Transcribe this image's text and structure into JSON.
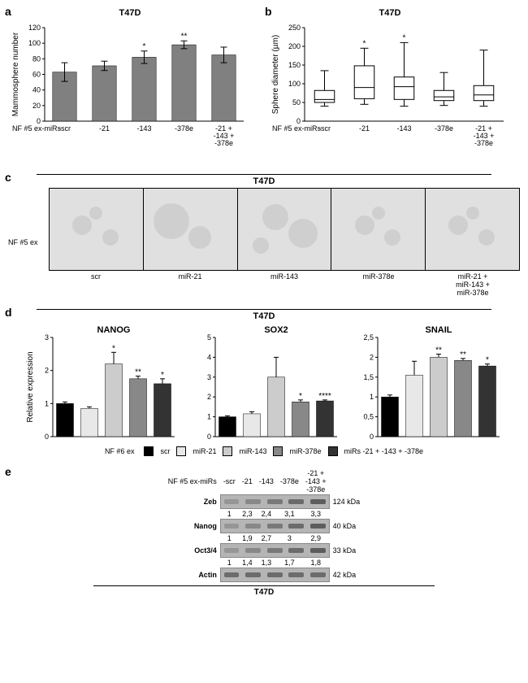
{
  "panel_a": {
    "letter": "a",
    "title": "T47D",
    "type": "bar",
    "ylabel": "Mammosphere number",
    "xlabel_prefix": "NF #5 ex-miRs",
    "categories": [
      "-scr",
      "-21",
      "-143",
      "-378e",
      "-21 +\n-143 +\n-378e"
    ],
    "values": [
      63,
      71,
      82,
      98,
      85
    ],
    "errors": [
      12,
      6,
      8,
      5,
      10
    ],
    "sig": [
      "",
      "",
      "*",
      "**",
      ""
    ],
    "ylim": [
      0,
      120
    ],
    "ytick_step": 20,
    "bar_color": "#808080",
    "background_color": "#ffffff"
  },
  "panel_b": {
    "letter": "b",
    "title": "T47D",
    "type": "boxplot",
    "ylabel": "Sphere diameter (µm)",
    "xlabel_prefix": "NF #5 ex-miRs",
    "categories": [
      "-scr",
      "-21",
      "-143",
      "-378e",
      "-21 +\n-143 +\n-378e"
    ],
    "boxes": [
      {
        "min": 40,
        "q1": 50,
        "med": 58,
        "q3": 82,
        "max": 135,
        "sig": ""
      },
      {
        "min": 45,
        "q1": 60,
        "med": 90,
        "q3": 148,
        "max": 195,
        "sig": "*"
      },
      {
        "min": 40,
        "q1": 58,
        "med": 92,
        "q3": 118,
        "max": 210,
        "sig": "*"
      },
      {
        "min": 42,
        "q1": 55,
        "med": 65,
        "q3": 82,
        "max": 130,
        "sig": ""
      },
      {
        "min": 40,
        "q1": 55,
        "med": 70,
        "q3": 95,
        "max": 190,
        "sig": ""
      }
    ],
    "ylim": [
      0,
      250
    ],
    "ytick_step": 50,
    "background_color": "#ffffff"
  },
  "panel_c": {
    "letter": "c",
    "title": "T47D",
    "row_label": "NF #5 ex",
    "labels": [
      "scr",
      "miR-21",
      "miR-143",
      "miR-378e",
      "miR-21 +\nmiR-143 +\nmiR-378e"
    ]
  },
  "panel_d": {
    "letter": "d",
    "title": "T47D",
    "ylabel": "Relative expression",
    "xlabel_prefix": "NF #6 ex",
    "legend": [
      {
        "label": "scr",
        "color": "#000000"
      },
      {
        "label": "miR-21",
        "color": "#e8e8e8"
      },
      {
        "label": "miR-143",
        "color": "#cccccc"
      },
      {
        "label": "miR-378e",
        "color": "#888888"
      },
      {
        "label": "miRs -21 + -143 + -378e",
        "color": "#333333"
      }
    ],
    "charts": [
      {
        "name": "NANOG",
        "ylim": [
          0,
          3
        ],
        "ytick_step": 1,
        "values": [
          1.0,
          0.85,
          2.2,
          1.75,
          1.6
        ],
        "errors": [
          0.05,
          0.05,
          0.35,
          0.08,
          0.15
        ],
        "sig": [
          "",
          "",
          "*",
          "**",
          "*"
        ]
      },
      {
        "name": "SOX2",
        "ylim": [
          0,
          5
        ],
        "ytick_step": 1,
        "values": [
          1.0,
          1.15,
          3.0,
          1.75,
          1.8
        ],
        "errors": [
          0.05,
          0.1,
          1.0,
          0.1,
          0.05
        ],
        "sig": [
          "",
          "",
          "",
          "*",
          "****"
        ]
      },
      {
        "name": "SNAIL",
        "ylim": [
          0,
          2.5
        ],
        "ytick_step": 0.5,
        "values": [
          1.0,
          1.55,
          2.0,
          1.92,
          1.78
        ],
        "errors": [
          0.05,
          0.35,
          0.08,
          0.05,
          0.05
        ],
        "sig": [
          "",
          "",
          "**",
          "**",
          "*"
        ]
      }
    ]
  },
  "panel_e": {
    "letter": "e",
    "header_label": "NF #5 ex-miRs",
    "columns": [
      "-scr",
      "-21",
      "-143",
      "-378e",
      "-21 +\n-143 +\n-378e"
    ],
    "rows": [
      {
        "name": "Zeb",
        "kda": "124 kDa",
        "vals": [
          "1",
          "2,3",
          "2,4",
          "3,1",
          "3,3"
        ]
      },
      {
        "name": "Nanog",
        "kda": "40 kDa",
        "vals": [
          "1",
          "1,9",
          "2,7",
          "3",
          "2,9"
        ]
      },
      {
        "name": "Oct3/4",
        "kda": "33 kDa",
        "vals": [
          "1",
          "1,4",
          "1,3",
          "1,7",
          "1,8"
        ]
      },
      {
        "name": "Actin",
        "kda": "42 kDa",
        "vals": [
          "",
          "",
          "",
          "",
          ""
        ]
      }
    ],
    "footer": "T47D"
  }
}
